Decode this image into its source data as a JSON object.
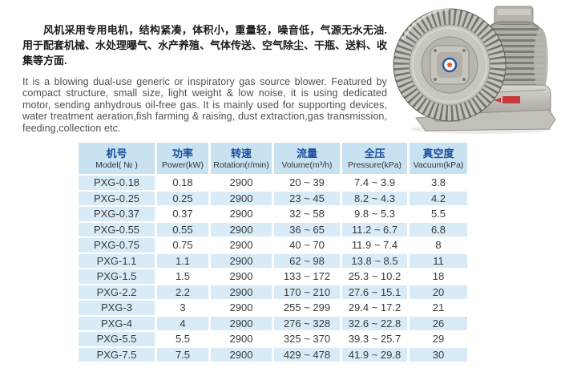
{
  "page": {
    "background": "#ffffff"
  },
  "intro": {
    "cn": "风机采用专用电机，结构紧凑，体积小，重量轻，噪音低，气源无水无油. 用于配套机械、水处理曝气、水产养殖、气体传送、空气除尘、干瓶、送料、收集等方面.",
    "en": "It is a blowing dual-use generic or inspiratory gas source blower. Featured by compact structure,  small size, light weight & low noise,  it is using dedicated motor, sending  anhydrous oil-free gas.  It is mainly used for supporting devices, water treatment aeration,fish farming & raising, dust extraction,gas transmission, feeding,collection etc."
  },
  "product_image": {
    "icon": "ring-blower"
  },
  "table": {
    "columns": [
      {
        "cn": "机号",
        "en": "Model( № )"
      },
      {
        "cn": "功率",
        "en": "Power(kW)"
      },
      {
        "cn": "转速",
        "en": "Rotation(r/min)"
      },
      {
        "cn": "流量",
        "en": "Volume(m³/h)"
      },
      {
        "cn": "全压",
        "en": "Pressure(kPa)"
      },
      {
        "cn": "真空度",
        "en": "Vacuum(kPa)"
      }
    ],
    "rows": [
      [
        "PXG-0.18",
        "0.18",
        "2900",
        "20 ~ 39",
        "7.4 ~ 3.9",
        "3.8"
      ],
      [
        "PXG-0.25",
        "0.25",
        "2900",
        "23 ~ 45",
        "8.2 ~ 4.3",
        "4.2"
      ],
      [
        "PXG-0.37",
        "0.37",
        "2900",
        "32 ~ 58",
        "9.8 ~ 5.3",
        "5.5"
      ],
      [
        "PXG-0.55",
        "0.55",
        "2900",
        "36 ~ 65",
        "11.2 ~ 6.7",
        "6.8"
      ],
      [
        "PXG-0.75",
        "0.75",
        "2900",
        "40 ~ 70",
        "11.9 ~ 7.4",
        "8"
      ],
      [
        "PXG-1.1",
        "1.1",
        "2900",
        "62 ~ 98",
        "13.8 ~ 8.5",
        "11"
      ],
      [
        "PXG-1.5",
        "1.5",
        "2900",
        "133 ~ 172",
        "25.3 ~ 10.2",
        "18"
      ],
      [
        "PXG-2.2",
        "2.2",
        "2900",
        "170 ~ 210",
        "27.6 ~ 15.1",
        "20"
      ],
      [
        "PXG-3",
        "3",
        "2900",
        "255 ~ 299",
        "29.4 ~ 17.2",
        "21"
      ],
      [
        "PXG-4",
        "4",
        "2900",
        "276 ~ 328",
        "32.6 ~ 22.8",
        "26"
      ],
      [
        "PXG-5.5",
        "5.5",
        "2900",
        "325 ~ 370",
        "39.3 ~ 25.7",
        "29"
      ],
      [
        "PXG-7.5",
        "7.5",
        "2900",
        "429 ~ 478",
        "41.9 ~ 29.8",
        "30"
      ]
    ]
  },
  "colors": {
    "header_bg": "#c9e2f2",
    "row_stripe": "#d8ebf7",
    "header_cn_text": "#1d4fa0",
    "body_text": "#3a3a3a"
  }
}
